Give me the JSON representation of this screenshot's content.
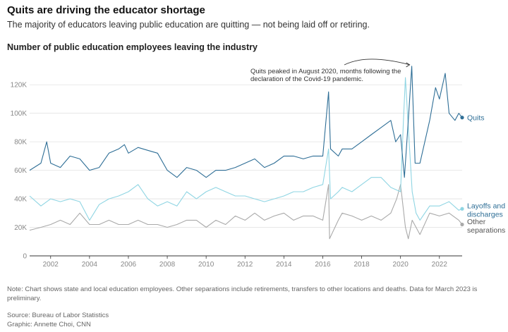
{
  "header": {
    "title": "Quits are driving the educator shortage",
    "subtitle": "The majority of educators leaving public education are quitting — not being laid off or retiring."
  },
  "footer": {
    "note": "Note: Chart shows state and local education employees. Other separations include retirements, transfers to other locations and deaths. Data for March 2023 is preliminary.",
    "source": "Source: Bureau of Labor Statistics",
    "graphic": "Graphic: Annette Choi, CNN"
  },
  "colors": {
    "quits": "#2e6e96",
    "layoffs": "#8fd5e3",
    "other": "#a9a9a9",
    "grid": "#e2e2e2",
    "axis": "#333333"
  },
  "chart_data": {
    "type": "line",
    "title": "Number of public education employees leaving the industry",
    "x_unit": "year (monthly data, Dec 2000 – Mar 2023)",
    "xlim": [
      2000.92,
      2023.17
    ],
    "ylim": [
      0,
      130000
    ],
    "y_ticks": [
      0,
      20000,
      40000,
      60000,
      80000,
      100000,
      120000
    ],
    "y_tick_labels": [
      "0",
      "20K",
      "40K",
      "60K",
      "80K",
      "100K",
      "120K"
    ],
    "x_ticks": [
      2002,
      2004,
      2006,
      2008,
      2010,
      2012,
      2014,
      2016,
      2018,
      2020,
      2022
    ],
    "x_tick_labels": [
      "2002",
      "2004",
      "2006",
      "2008",
      "2010",
      "2012",
      "2014",
      "2016",
      "2018",
      "2020",
      "2022"
    ],
    "grid": true,
    "legend": "direct labels at line ends",
    "annotation": {
      "lines": [
        "Quits peaked in August 2020, months following the",
        "declaration of the Covid-19 pandemic."
      ],
      "points_to": [
        2020.58,
        133000
      ]
    },
    "series": [
      {
        "name": "Quits",
        "label_lines": [
          "Quits"
        ],
        "points": [
          [
            2000.92,
            60000
          ],
          [
            2001.5,
            65000
          ],
          [
            2001.8,
            80000
          ],
          [
            2002.0,
            65000
          ],
          [
            2002.5,
            62000
          ],
          [
            2003.0,
            70000
          ],
          [
            2003.5,
            68000
          ],
          [
            2004.0,
            60000
          ],
          [
            2004.5,
            62000
          ],
          [
            2005.0,
            72000
          ],
          [
            2005.5,
            75000
          ],
          [
            2005.8,
            78000
          ],
          [
            2006.0,
            72000
          ],
          [
            2006.5,
            76000
          ],
          [
            2007.0,
            74000
          ],
          [
            2007.5,
            72000
          ],
          [
            2008.0,
            60000
          ],
          [
            2008.5,
            55000
          ],
          [
            2009.0,
            62000
          ],
          [
            2009.5,
            60000
          ],
          [
            2010.0,
            55000
          ],
          [
            2010.5,
            60000
          ],
          [
            2011.0,
            60000
          ],
          [
            2011.5,
            62000
          ],
          [
            2012.0,
            65000
          ],
          [
            2012.5,
            68000
          ],
          [
            2013.0,
            62000
          ],
          [
            2013.5,
            65000
          ],
          [
            2014.0,
            70000
          ],
          [
            2014.5,
            70000
          ],
          [
            2015.0,
            68000
          ],
          [
            2015.5,
            70000
          ],
          [
            2016.0,
            70000
          ],
          [
            2016.3,
            115000
          ],
          [
            2016.4,
            75000
          ],
          [
            2016.8,
            70000
          ],
          [
            2017.0,
            75000
          ],
          [
            2017.5,
            75000
          ],
          [
            2018.0,
            80000
          ],
          [
            2018.5,
            85000
          ],
          [
            2019.0,
            90000
          ],
          [
            2019.5,
            95000
          ],
          [
            2019.75,
            80000
          ],
          [
            2020.0,
            85000
          ],
          [
            2020.2,
            55000
          ],
          [
            2020.4,
            95000
          ],
          [
            2020.58,
            133000
          ],
          [
            2020.75,
            65000
          ],
          [
            2021.0,
            65000
          ],
          [
            2021.5,
            95000
          ],
          [
            2021.8,
            118000
          ],
          [
            2022.0,
            110000
          ],
          [
            2022.3,
            128000
          ],
          [
            2022.5,
            100000
          ],
          [
            2022.8,
            95000
          ],
          [
            2023.0,
            100000
          ],
          [
            2023.17,
            97000
          ]
        ]
      },
      {
        "name": "Layoffs and discharges",
        "label_lines": [
          "Layoffs and",
          "discharges"
        ],
        "points": [
          [
            2000.92,
            42000
          ],
          [
            2001.5,
            35000
          ],
          [
            2002.0,
            40000
          ],
          [
            2002.5,
            38000
          ],
          [
            2003.0,
            40000
          ],
          [
            2003.5,
            38000
          ],
          [
            2004.0,
            25000
          ],
          [
            2004.5,
            36000
          ],
          [
            2005.0,
            40000
          ],
          [
            2005.5,
            42000
          ],
          [
            2006.0,
            45000
          ],
          [
            2006.5,
            50000
          ],
          [
            2007.0,
            40000
          ],
          [
            2007.5,
            35000
          ],
          [
            2008.0,
            38000
          ],
          [
            2008.5,
            35000
          ],
          [
            2009.0,
            45000
          ],
          [
            2009.5,
            40000
          ],
          [
            2010.0,
            45000
          ],
          [
            2010.5,
            48000
          ],
          [
            2011.0,
            45000
          ],
          [
            2011.5,
            42000
          ],
          [
            2012.0,
            42000
          ],
          [
            2012.5,
            40000
          ],
          [
            2013.0,
            38000
          ],
          [
            2013.5,
            40000
          ],
          [
            2014.0,
            42000
          ],
          [
            2014.5,
            45000
          ],
          [
            2015.0,
            45000
          ],
          [
            2015.5,
            48000
          ],
          [
            2016.0,
            50000
          ],
          [
            2016.3,
            75000
          ],
          [
            2016.4,
            40000
          ],
          [
            2016.8,
            45000
          ],
          [
            2017.0,
            48000
          ],
          [
            2017.5,
            45000
          ],
          [
            2018.0,
            50000
          ],
          [
            2018.5,
            55000
          ],
          [
            2019.0,
            55000
          ],
          [
            2019.5,
            48000
          ],
          [
            2020.0,
            45000
          ],
          [
            2020.15,
            95000
          ],
          [
            2020.25,
            125000
          ],
          [
            2020.4,
            90000
          ],
          [
            2020.6,
            45000
          ],
          [
            2020.8,
            30000
          ],
          [
            2021.0,
            25000
          ],
          [
            2021.5,
            35000
          ],
          [
            2022.0,
            35000
          ],
          [
            2022.5,
            38000
          ],
          [
            2023.0,
            32000
          ],
          [
            2023.17,
            33000
          ]
        ]
      },
      {
        "name": "Other separations",
        "label_lines": [
          "Other",
          "separations"
        ],
        "points": [
          [
            2000.92,
            18000
          ],
          [
            2001.5,
            20000
          ],
          [
            2002.0,
            22000
          ],
          [
            2002.5,
            25000
          ],
          [
            2003.0,
            22000
          ],
          [
            2003.5,
            30000
          ],
          [
            2004.0,
            22000
          ],
          [
            2004.5,
            22000
          ],
          [
            2005.0,
            25000
          ],
          [
            2005.5,
            22000
          ],
          [
            2006.0,
            22000
          ],
          [
            2006.5,
            25000
          ],
          [
            2007.0,
            22000
          ],
          [
            2007.5,
            22000
          ],
          [
            2008.0,
            20000
          ],
          [
            2008.5,
            22000
          ],
          [
            2009.0,
            25000
          ],
          [
            2009.5,
            25000
          ],
          [
            2010.0,
            20000
          ],
          [
            2010.5,
            25000
          ],
          [
            2011.0,
            22000
          ],
          [
            2011.5,
            28000
          ],
          [
            2012.0,
            25000
          ],
          [
            2012.5,
            30000
          ],
          [
            2013.0,
            25000
          ],
          [
            2013.5,
            28000
          ],
          [
            2014.0,
            30000
          ],
          [
            2014.5,
            25000
          ],
          [
            2015.0,
            28000
          ],
          [
            2015.5,
            28000
          ],
          [
            2016.0,
            25000
          ],
          [
            2016.3,
            50000
          ],
          [
            2016.35,
            12000
          ],
          [
            2016.8,
            25000
          ],
          [
            2017.0,
            30000
          ],
          [
            2017.5,
            28000
          ],
          [
            2018.0,
            25000
          ],
          [
            2018.5,
            28000
          ],
          [
            2019.0,
            25000
          ],
          [
            2019.5,
            30000
          ],
          [
            2019.8,
            40000
          ],
          [
            2020.0,
            50000
          ],
          [
            2020.25,
            20000
          ],
          [
            2020.4,
            12000
          ],
          [
            2020.6,
            25000
          ],
          [
            2021.0,
            15000
          ],
          [
            2021.5,
            30000
          ],
          [
            2022.0,
            28000
          ],
          [
            2022.5,
            30000
          ],
          [
            2023.0,
            25000
          ],
          [
            2023.17,
            22000
          ]
        ]
      }
    ]
  }
}
